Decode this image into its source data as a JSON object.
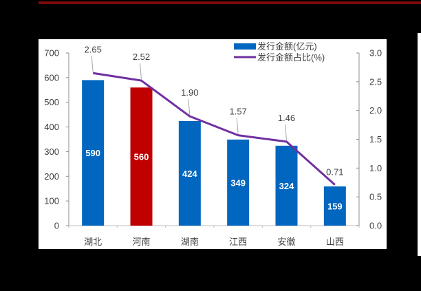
{
  "chart_data": {
    "type": "bar",
    "title": "",
    "categories": [
      "湖北",
      "河南",
      "湖南",
      "江西",
      "安徽",
      "山西"
    ],
    "series": [
      {
        "name": "发行金额(亿元)",
        "type": "bar",
        "axis": "left",
        "values": [
          590,
          560,
          424,
          349,
          324,
          159
        ],
        "colors": [
          "#0066bf",
          "#c00000",
          "#0066bf",
          "#0066bf",
          "#0066bf",
          "#0066bf"
        ]
      },
      {
        "name": "发行金额占比(%)",
        "type": "line",
        "axis": "right",
        "values": [
          2.65,
          2.52,
          1.9,
          1.57,
          1.46,
          0.71
        ],
        "color": "#7030a0"
      }
    ],
    "y_left": {
      "ticks": [
        0,
        100,
        200,
        300,
        400,
        500,
        600,
        700
      ],
      "ylim": [
        0,
        700
      ]
    },
    "y_right": {
      "ticks": [
        "0.0",
        "0.5",
        "1.0",
        "1.5",
        "2.0",
        "2.5",
        "3.0"
      ],
      "ylim": [
        0,
        3.0
      ]
    },
    "xlabel": "",
    "ylabel": "",
    "legend_position": "top-right",
    "grid": false,
    "highlight_category": "河南"
  },
  "colors": {
    "bar": "#0066bf",
    "highlight": "#c00000",
    "line": "#7030a0",
    "topbar": "#7a0a0a"
  }
}
